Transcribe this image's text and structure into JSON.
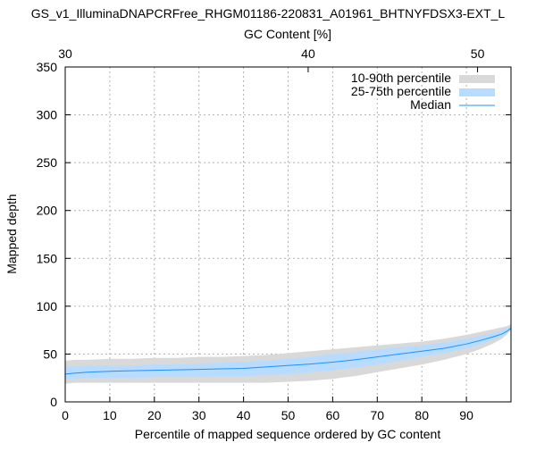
{
  "chart_data": {
    "type": "area",
    "title": "GS_v1_IlluminaDNAPCRFree_RHGM01186-220831_A01961_BHTNYFDSX3-EXT_L",
    "xlabel": "Percentile of mapped sequence ordered by GC content",
    "ylabel": "Mapped depth",
    "x2label": "GC Content [%]",
    "xlim": [
      0,
      100
    ],
    "ylim": [
      0,
      350
    ],
    "xticks": [
      "0",
      "10",
      "20",
      "30",
      "40",
      "50",
      "60",
      "70",
      "80",
      "90"
    ],
    "yticks": [
      "0",
      "50",
      "100",
      "150",
      "200",
      "250",
      "300",
      "350"
    ],
    "x2ticks": [
      {
        "value": 30,
        "label": "30",
        "percentile": 0
      },
      {
        "value": 40,
        "label": "40",
        "percentile": 54.5
      },
      {
        "value": 50,
        "label": "50",
        "percentile": 92.5
      }
    ],
    "grid": true,
    "legend_position": "top-right",
    "x": [
      0,
      2,
      5,
      10,
      15,
      20,
      25,
      30,
      35,
      40,
      45,
      50,
      55,
      60,
      65,
      70,
      75,
      80,
      85,
      90,
      93,
      96,
      98,
      99,
      100
    ],
    "series": [
      {
        "name": "10-90th percentile",
        "color": "#d9d9d9",
        "low": [
          19,
          20,
          20,
          20,
          20,
          20,
          20,
          20,
          20,
          20,
          20,
          21,
          22,
          24,
          27,
          31,
          35,
          39,
          44,
          50,
          55,
          61,
          66,
          70,
          75
        ],
        "high": [
          43,
          44,
          44,
          45,
          45,
          46,
          46,
          47,
          47,
          48,
          49,
          51,
          53,
          55,
          57,
          59,
          61,
          63,
          66,
          70,
          73,
          76,
          78,
          79,
          81
        ]
      },
      {
        "name": "25-75th percentile",
        "color": "#b7dcff",
        "low": [
          24,
          24,
          25,
          25,
          25,
          26,
          26,
          26,
          27,
          27,
          28,
          29,
          31,
          33,
          36,
          39,
          43,
          47,
          51,
          56,
          60,
          65,
          69,
          72,
          76
        ],
        "high": [
          37,
          37,
          38,
          38,
          38,
          39,
          39,
          40,
          41,
          42,
          43,
          45,
          47,
          50,
          52,
          55,
          57,
          59,
          62,
          66,
          69,
          72,
          75,
          77,
          79
        ]
      },
      {
        "name": "Median",
        "color": "#1e90ff",
        "values": [
          29,
          30,
          31,
          32,
          32.5,
          33,
          33.5,
          34,
          34.5,
          35,
          36.5,
          38,
          39.5,
          41.5,
          44,
          47,
          50,
          53,
          56,
          60.5,
          64,
          68,
          71,
          73.5,
          77
        ]
      }
    ]
  }
}
